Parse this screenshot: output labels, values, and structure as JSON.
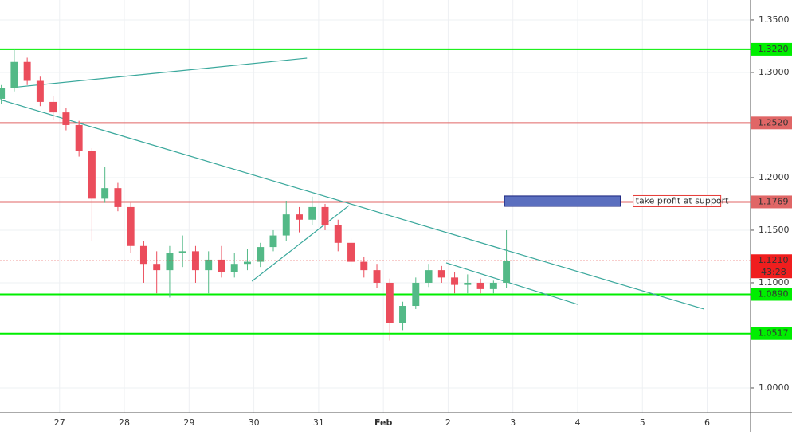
{
  "chart_data": {
    "type": "candlestick",
    "xlim": [
      26.08,
      37.67
    ],
    "ylim": [
      0.9765,
      1.3689
    ],
    "xticks": [
      27,
      28,
      29,
      30,
      31,
      {
        "value": 32,
        "label": "Feb"
      },
      {
        "value": 33,
        "label": "2"
      },
      {
        "value": 34,
        "label": "3"
      },
      {
        "value": 35,
        "label": "4"
      },
      {
        "value": 36,
        "label": "5"
      },
      {
        "value": 37,
        "label": "6"
      }
    ],
    "yticks": [
      {
        "value": 1.0,
        "label": "1.0000"
      },
      {
        "value": 1.1,
        "label": "1.1000"
      },
      {
        "value": 1.15,
        "label": "1.1500"
      },
      {
        "value": 1.2,
        "label": "1.2000"
      },
      {
        "value": 1.3,
        "label": "1.3000"
      },
      {
        "value": 1.35,
        "label": "1.3500"
      }
    ],
    "grid": true,
    "up_color": "#53b987",
    "down_color": "#eb4d5c",
    "x": [
      26.1,
      26.3,
      26.5,
      26.7,
      26.9,
      27.1,
      27.3,
      27.5,
      27.7,
      27.9,
      28.1,
      28.3,
      28.5,
      28.7,
      28.9,
      29.1,
      29.3,
      29.5,
      29.7,
      29.9,
      30.1,
      30.3,
      30.5,
      30.7,
      30.9,
      31.1,
      31.3,
      31.5,
      31.7,
      31.9,
      32.1,
      32.3,
      32.5,
      32.7,
      32.9,
      33.1,
      33.3,
      33.5,
      33.7,
      33.9
    ],
    "open": [
      1.275,
      1.285,
      1.31,
      1.292,
      1.272,
      1.262,
      1.25,
      1.225,
      1.18,
      1.19,
      1.172,
      1.135,
      1.118,
      1.112,
      1.128,
      1.13,
      1.112,
      1.122,
      1.11,
      1.118,
      1.12,
      1.134,
      1.145,
      1.165,
      1.16,
      1.172,
      1.155,
      1.138,
      1.12,
      1.112,
      1.1,
      1.062,
      1.078,
      1.1,
      1.112,
      1.105,
      1.098,
      1.1,
      1.094,
      1.1
    ],
    "high": [
      1.288,
      1.322,
      1.314,
      1.296,
      1.278,
      1.266,
      1.254,
      1.228,
      1.21,
      1.195,
      1.176,
      1.14,
      1.13,
      1.135,
      1.145,
      1.135,
      1.13,
      1.135,
      1.128,
      1.132,
      1.138,
      1.15,
      1.178,
      1.172,
      1.182,
      1.175,
      1.16,
      1.142,
      1.125,
      1.118,
      1.104,
      1.082,
      1.105,
      1.118,
      1.116,
      1.11,
      1.108,
      1.104,
      1.102,
      1.15
    ],
    "low": [
      1.27,
      1.282,
      1.288,
      1.268,
      1.255,
      1.245,
      1.22,
      1.14,
      1.176,
      1.168,
      1.128,
      1.1,
      1.09,
      1.086,
      1.115,
      1.1,
      1.09,
      1.105,
      1.105,
      1.112,
      1.115,
      1.13,
      1.14,
      1.148,
      1.155,
      1.15,
      1.13,
      1.115,
      1.105,
      1.095,
      1.045,
      1.055,
      1.075,
      1.096,
      1.1,
      1.09,
      1.09,
      1.09,
      1.09,
      1.095
    ],
    "close": [
      1.285,
      1.31,
      1.292,
      1.272,
      1.262,
      1.25,
      1.225,
      1.18,
      1.19,
      1.172,
      1.135,
      1.118,
      1.112,
      1.128,
      1.13,
      1.112,
      1.122,
      1.11,
      1.118,
      1.12,
      1.134,
      1.145,
      1.165,
      1.16,
      1.172,
      1.155,
      1.138,
      1.12,
      1.112,
      1.1,
      1.062,
      1.078,
      1.1,
      1.112,
      1.105,
      1.098,
      1.1,
      1.094,
      1.1,
      1.121
    ],
    "levels": [
      {
        "price": {
          "value": 1.322,
          "label": "1.3220"
        },
        "color": "#00ee00"
      },
      {
        "price": {
          "value": 1.252,
          "label": "1.2520"
        },
        "color": "#e06666"
      },
      {
        "price": {
          "value": 1.1769,
          "label": "1.1769"
        },
        "color": "#e06666"
      },
      {
        "price": {
          "value": 1.089,
          "label": "1.0890"
        },
        "color": "#00ee00"
      },
      {
        "price": {
          "value": 1.0517,
          "label": "1.0517"
        },
        "color": "#00ee00"
      }
    ],
    "current_price": {
      "value": 1.121,
      "label": "1.1210"
    },
    "countdown": "43:28",
    "trendline_color": "#3aa89c",
    "trendlines": [
      {
        "x": [
          26.26,
          30.82
        ],
        "y": [
          1.2856,
          1.3136
        ]
      },
      {
        "x": [
          26.08,
          36.95
        ],
        "y": [
          1.2742,
          1.075
        ]
      },
      {
        "x": [
          29.97,
          31.47
        ],
        "y": [
          1.1015,
          1.1735
        ]
      },
      {
        "x": [
          32.97,
          35.0
        ],
        "y": [
          1.119,
          1.0795
        ]
      }
    ],
    "box": {
      "x": [
        33.87,
        35.66
      ],
      "y": [
        1.1727,
        1.1826
      ],
      "color": "#5b6fbf"
    },
    "annotation": "take profit at support"
  }
}
